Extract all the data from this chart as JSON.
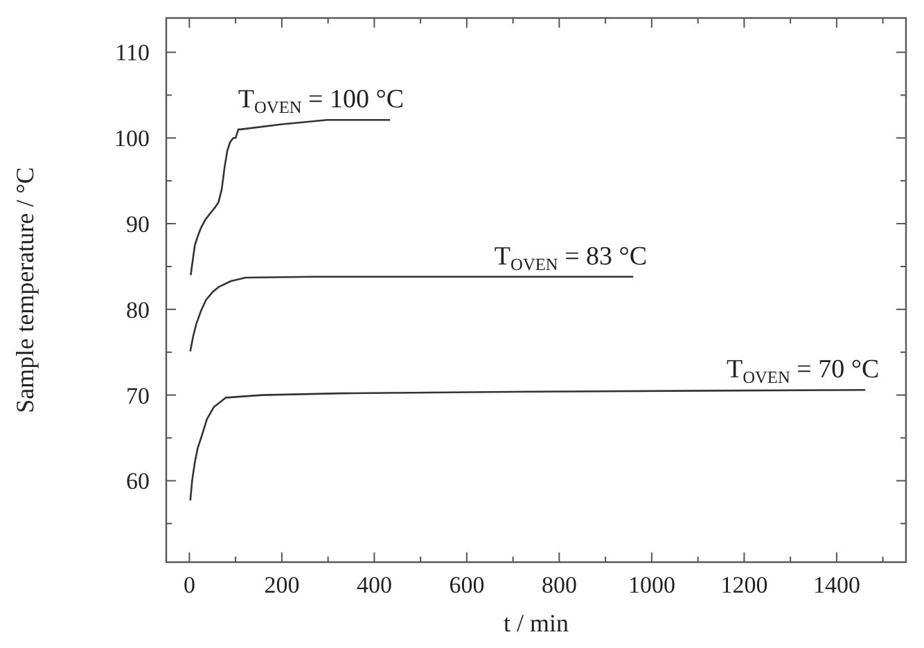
{
  "chart_data": {
    "type": "line",
    "xlabel": "t / min",
    "ylabel": "Sample temperature / °C",
    "xlim": [
      -50,
      1550
    ],
    "ylim": [
      50.5,
      114
    ],
    "xticks": [
      0,
      {
        "value": 100,
        "label": null
      },
      200,
      {
        "value": 300,
        "label": null
      },
      400,
      {
        "value": 500,
        "label": null
      },
      600,
      {
        "value": 700,
        "label": null
      },
      800,
      {
        "value": 900,
        "label": null
      },
      1000,
      {
        "value": 1100,
        "label": null
      },
      1200,
      {
        "value": 1300,
        "label": null
      },
      1400,
      {
        "value": 1500,
        "label": null
      }
    ],
    "yticks": [
      {
        "value": 55,
        "label": null
      },
      60,
      {
        "value": 65,
        "label": null
      },
      70,
      {
        "value": 75,
        "label": null
      },
      80,
      {
        "value": 85,
        "label": null
      },
      90,
      {
        "value": 95,
        "label": null
      },
      100,
      {
        "value": 105,
        "label": null
      },
      110
    ],
    "grid": false,
    "marker": "none",
    "line_style": "solid",
    "series": [
      {
        "name": "T$_{OVEN}$ = 100 °C",
        "color": "#333333",
        "x": [
          3,
          8,
          12,
          18,
          25,
          35,
          45,
          57,
          63,
          70,
          76,
          82,
          88,
          95,
          100,
          106,
          111,
          200,
          298,
          434
        ],
        "values": [
          84,
          86,
          87.5,
          88.5,
          89.5,
          90.5,
          91.2,
          92,
          92.5,
          94,
          96.5,
          98.5,
          99.5,
          100,
          100,
          101,
          101,
          101.6,
          102.1,
          102.1
        ]
      },
      {
        "name": "T$_{OVEN}$ = 83 °C",
        "color": "#333333",
        "x": [
          2,
          8,
          15,
          25,
          36,
          50,
          63,
          90,
          122,
          270,
          960
        ],
        "values": [
          75.1,
          76.8,
          78.3,
          79.8,
          81.1,
          82,
          82.6,
          83.3,
          83.7,
          83.8,
          83.8
        ]
      },
      {
        "name": "T$_{OVEN}$ = 70 °C",
        "color": "#333333",
        "x": [
          2,
          6,
          12,
          18,
          26,
          38,
          53,
          79,
          158,
          329,
          747,
          1462
        ],
        "values": [
          57.7,
          60,
          62.2,
          63.8,
          65.1,
          67.2,
          68.6,
          69.7,
          70,
          70.2,
          70.4,
          70.6
        ]
      }
    ]
  }
}
